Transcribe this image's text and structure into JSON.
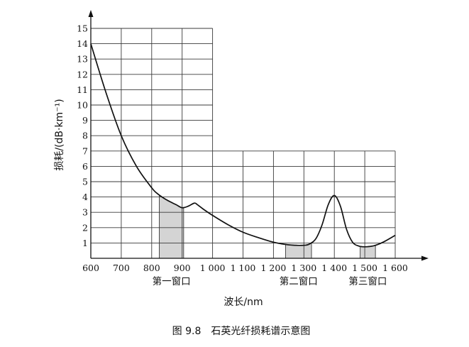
{
  "chart_data": {
    "type": "line",
    "caption": "图 9.8　石英光纤损耗谱示意图",
    "xlabel": "波长/nm",
    "ylabel": "损耗/(dB·km⁻¹)",
    "xlim": [
      600,
      1600
    ],
    "ylim": [
      0,
      15
    ],
    "x_ticks": [
      600,
      700,
      800,
      900,
      1000,
      1100,
      1200,
      1300,
      1400,
      1500,
      1600
    ],
    "x_tick_labels": [
      "600",
      "700",
      "800",
      "900",
      "1 000",
      "1 100",
      "1 200",
      "1 300",
      "1 400",
      "1 500",
      "1 600"
    ],
    "y_ticks": [
      1,
      2,
      3,
      4,
      5,
      6,
      7,
      8,
      9,
      10,
      11,
      12,
      13,
      14,
      15
    ],
    "y_tick_labels": [
      "1",
      "2",
      "3",
      "4",
      "5",
      "6",
      "7",
      "8",
      "9",
      "10",
      "11",
      "12",
      "13",
      "14",
      "15"
    ],
    "grid": true,
    "series": [
      {
        "x": [
          600,
          650,
          700,
          750,
          800,
          820,
          850,
          880,
          900,
          920,
          940,
          950,
          970,
          1000,
          1050,
          1100,
          1150,
          1200,
          1250,
          1300,
          1320,
          1340,
          1360,
          1380,
          1400,
          1420,
          1440,
          1460,
          1480,
          1500,
          1530,
          1560,
          1600
        ],
        "y": [
          14.0,
          10.8,
          8.0,
          6.0,
          4.6,
          4.2,
          3.8,
          3.5,
          3.3,
          3.4,
          3.6,
          3.5,
          3.2,
          2.8,
          2.2,
          1.7,
          1.35,
          1.05,
          0.88,
          0.85,
          0.95,
          1.3,
          2.2,
          3.5,
          4.1,
          3.4,
          1.9,
          1.05,
          0.8,
          0.75,
          0.82,
          1.05,
          1.5
        ]
      }
    ],
    "windows": [
      {
        "label": "第一窗口",
        "x_start": 825,
        "x_end": 905
      },
      {
        "label": "第二窗口",
        "x_start": 1240,
        "x_end": 1325
      },
      {
        "label": "第三窗口",
        "x_start": 1485,
        "x_end": 1535
      }
    ]
  },
  "colors": {
    "grid": "#3a3a3a",
    "curve": "#111111",
    "window_fill": "#d4d4d4"
  }
}
